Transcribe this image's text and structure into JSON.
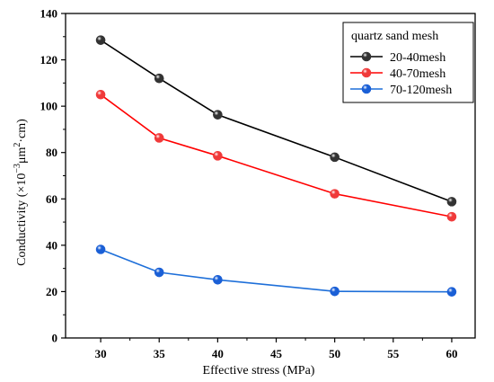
{
  "chart_data": {
    "type": "line",
    "xlabel": "Effective stress (MPa)",
    "ylabel": {
      "prefix": "Conductivity (×10",
      "exp1": "−3",
      "mid": "μm",
      "exp2": "2",
      "suffix": "·cm)"
    },
    "xlim": [
      27,
      62
    ],
    "ylim": [
      0,
      140
    ],
    "xticks": [
      30,
      35,
      40,
      45,
      50,
      55,
      60
    ],
    "yticks": [
      0,
      20,
      40,
      60,
      80,
      100,
      120,
      140
    ],
    "legend_title": "quartz sand mesh",
    "legend_position": "top-right",
    "grid": false,
    "series": [
      {
        "name": "20-40mesh",
        "color": "#000000",
        "marker_color": "#333333",
        "x": [
          30,
          35,
          40,
          50,
          60
        ],
        "y": [
          128.5,
          112.0,
          96.3,
          78.0,
          58.8
        ]
      },
      {
        "name": "40-70mesh",
        "color": "#ff0000",
        "marker_color": "#f03a3a",
        "x": [
          30,
          35,
          40,
          50,
          60
        ],
        "y": [
          105.0,
          86.3,
          78.6,
          62.2,
          52.3
        ]
      },
      {
        "name": "70-120mesh",
        "color": "#1e6fd9",
        "marker_color": "#1a5fd6",
        "x": [
          30,
          35,
          40,
          50,
          60
        ],
        "y": [
          38.2,
          28.3,
          25.1,
          20.1,
          19.9
        ]
      }
    ]
  }
}
